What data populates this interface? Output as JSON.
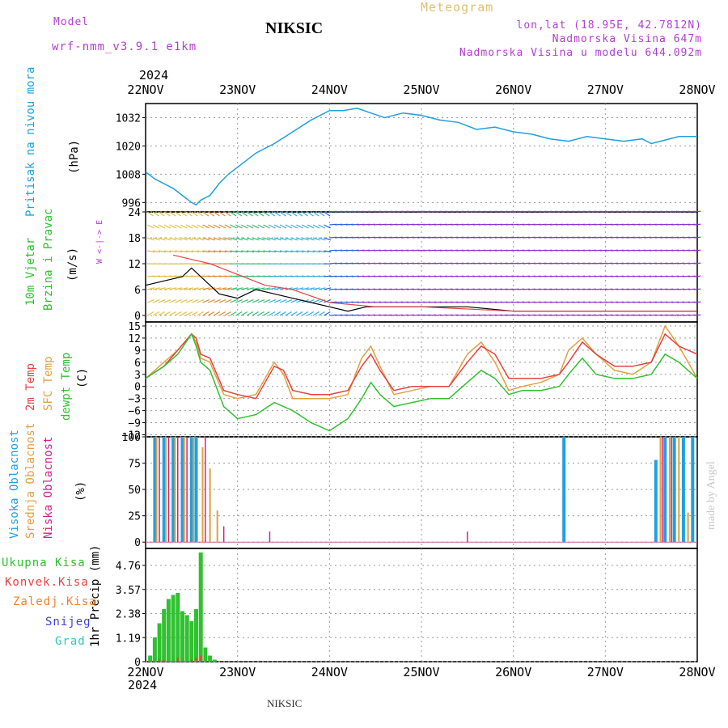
{
  "header": {
    "model_label": "Model",
    "model_name": "wrf-nmm_v3.9.1 e1km",
    "station": "NIKSIC",
    "meteogram": "Meteogram",
    "lonlat": "lon,lat (18.95E, 42.7812N)",
    "elevation": "Nadmorska Visina 647m",
    "model_elevation": "Nadmorska Visina u modelu 644.092m",
    "year_top": "2024",
    "year_bottom": "2024",
    "footer_station": "NIKSIC",
    "credit": "made by Angel"
  },
  "colors": {
    "pressure": "#1fa0e0",
    "temp2m": "#e84040",
    "sfc": "#e0a040",
    "dewpt": "#30c030",
    "cloud_high": "#1fa0e0",
    "cloud_mid": "#e0a040",
    "cloud_low": "#d0208a",
    "precip_total": "#30c030",
    "precip_conv": "#e84040",
    "precip_freez": "#f08030",
    "precip_snow": "#4040e0",
    "precip_grad": "#30c8b0",
    "wind_label": "#30c030",
    "grid": "#999999"
  },
  "panels": {
    "pressure": {
      "label": "Pritisak na nivou mora",
      "unit": "(hPa)",
      "ticks": [
        "1032",
        "1020",
        "1008",
        "996"
      ]
    },
    "wind": {
      "label1": "10m Vjetar",
      "label2": "Brzina i Pravac",
      "unit": "(m/s)",
      "ticks": [
        "24",
        "18",
        "12",
        "6",
        "0"
      ],
      "compass": "W <-|-> E"
    },
    "temp": {
      "label1": "2m Temp",
      "label2": "SFC Temp",
      "label3": "dewpt Temp",
      "unit": "(C)",
      "ticks": [
        "15",
        "12",
        "9",
        "6",
        "3",
        "0",
        "−3",
        "−6",
        "−9",
        "−12"
      ]
    },
    "cloud": {
      "label1": "Visoka Oblacnost",
      "label2": "Srednja Oblacnost",
      "label3": "Niska Oblacnost",
      "unit": "(%)",
      "ticks": [
        "100",
        "75",
        "50",
        "25",
        "0"
      ]
    },
    "precip": {
      "unit": "1hr Precip (mm)",
      "ticks": [
        "4.76",
        "3.57",
        "2.38",
        "1.19",
        "0"
      ],
      "legend": [
        "Ukupna Kisa",
        "Konvek.Kisa",
        "Zaledj.Kisa",
        "Snijeg",
        "Grad"
      ]
    }
  },
  "chart_data": {
    "type": "line",
    "x_labels": [
      "22NOV",
      "23NOV",
      "24NOV",
      "25NOV",
      "26NOV",
      "27NOV",
      "28NOV"
    ],
    "x_range_days": [
      0,
      6
    ],
    "pressure": {
      "ylim": [
        992,
        1038
      ],
      "x": [
        0,
        0.1,
        0.2,
        0.3,
        0.4,
        0.5,
        0.55,
        0.6,
        0.7,
        0.8,
        0.9,
        1.0,
        1.2,
        1.4,
        1.6,
        1.8,
        2.0,
        2.15,
        2.3,
        2.45,
        2.6,
        2.8,
        3.0,
        3.2,
        3.4,
        3.6,
        3.8,
        4.0,
        4.2,
        4.4,
        4.6,
        4.8,
        5.0,
        5.2,
        5.4,
        5.5,
        5.6,
        5.8,
        6.0
      ],
      "values": [
        1009,
        1006,
        1004,
        1002,
        999,
        996,
        995,
        997,
        999,
        1004,
        1008,
        1011,
        1017,
        1021,
        1026,
        1031,
        1035,
        1035,
        1036,
        1034,
        1032,
        1034,
        1033,
        1031,
        1030,
        1027,
        1028,
        1026,
        1025,
        1023,
        1022,
        1024,
        1023,
        1022,
        1023,
        1021,
        1022,
        1024,
        1024
      ]
    },
    "wind": {
      "ylim": [
        -1.5,
        24
      ],
      "speed_x": [
        0,
        0.2,
        0.4,
        0.5,
        0.6,
        0.7,
        0.8,
        1.0,
        1.2,
        1.4,
        1.6,
        1.8,
        2.0,
        2.2,
        2.4,
        2.6,
        2.8,
        3.0,
        3.5,
        4.0,
        4.5,
        5.0,
        5.5,
        6.0
      ],
      "speed": [
        7,
        8,
        9,
        11,
        9,
        7,
        5,
        4,
        6,
        5,
        4,
        3,
        2,
        1,
        2,
        2,
        2,
        2,
        2,
        1,
        1,
        1,
        1,
        1
      ],
      "gust_x": [
        0.3,
        0.5,
        0.7,
        1.3,
        1.6,
        2.0,
        2.5,
        3.0,
        4.0,
        5.0,
        5.6,
        6.0
      ],
      "gust": [
        14,
        13,
        12,
        7,
        6,
        3,
        2,
        2,
        1,
        1,
        1,
        1
      ]
    },
    "temperature": {
      "ylim": [
        -12.5,
        16
      ],
      "x": [
        0,
        0.2,
        0.35,
        0.5,
        0.55,
        0.6,
        0.7,
        0.85,
        1.0,
        1.2,
        1.4,
        1.5,
        1.6,
        1.8,
        2.0,
        2.2,
        2.35,
        2.45,
        2.55,
        2.7,
        2.9,
        3.1,
        3.3,
        3.5,
        3.65,
        3.8,
        3.95,
        4.1,
        4.3,
        4.5,
        4.6,
        4.75,
        4.9,
        5.1,
        5.3,
        5.5,
        5.65,
        5.8,
        6.0
      ],
      "t2m": [
        2,
        5,
        9,
        13,
        12,
        8,
        7,
        -1,
        -2,
        -3,
        5,
        4,
        -1,
        -2,
        -2,
        -1,
        5,
        8,
        4,
        -1,
        0,
        0,
        0,
        6,
        10,
        8,
        2,
        2,
        2,
        3,
        6,
        11,
        8,
        5,
        5,
        6,
        13,
        10,
        8
      ],
      "sfc": [
        2,
        6,
        9,
        13,
        11,
        7,
        6,
        -2,
        -3,
        -2,
        6,
        3,
        -3,
        -3,
        -3,
        -2,
        7,
        10,
        5,
        -2,
        -1,
        0,
        0,
        8,
        11,
        6,
        -1,
        0,
        1,
        3,
        9,
        12,
        8,
        4,
        3,
        6,
        15,
        10,
        2
      ],
      "dewpt": [
        2,
        5,
        8,
        13,
        10,
        6,
        4,
        -5,
        -8,
        -7,
        -4,
        -5,
        -6,
        -9,
        -11,
        -8,
        -3,
        1,
        -2,
        -5,
        -4,
        -3,
        -3,
        1,
        4,
        2,
        -2,
        -1,
        -1,
        0,
        3,
        7,
        3,
        2,
        2,
        3,
        8,
        6,
        2
      ]
    },
    "cloud": {
      "ylim": [
        0,
        100
      ],
      "high": [
        [
          0.1,
          100
        ],
        [
          0.2,
          100
        ],
        [
          0.3,
          100
        ],
        [
          0.4,
          100
        ],
        [
          0.5,
          100
        ],
        [
          0.55,
          100
        ],
        [
          4.55,
          100
        ],
        [
          5.55,
          78
        ],
        [
          5.65,
          100
        ],
        [
          5.75,
          100
        ],
        [
          5.85,
          100
        ],
        [
          5.95,
          100
        ]
      ],
      "mid": [
        [
          0.12,
          100
        ],
        [
          0.22,
          100
        ],
        [
          0.32,
          100
        ],
        [
          0.42,
          100
        ],
        [
          0.52,
          100
        ],
        [
          0.62,
          90
        ],
        [
          0.7,
          70
        ],
        [
          0.78,
          30
        ],
        [
          5.6,
          100
        ],
        [
          5.7,
          100
        ],
        [
          5.8,
          100
        ],
        [
          5.9,
          28
        ]
      ],
      "low": [
        [
          0.15,
          100
        ],
        [
          0.25,
          100
        ],
        [
          0.35,
          100
        ],
        [
          0.45,
          100
        ],
        [
          0.65,
          100
        ],
        [
          0.85,
          15
        ],
        [
          1.35,
          10
        ],
        [
          3.5,
          10
        ],
        [
          5.62,
          100
        ],
        [
          5.72,
          100
        ]
      ]
    },
    "precip": {
      "ylim": [
        0,
        5.6
      ],
      "x": [
        0.05,
        0.1,
        0.15,
        0.2,
        0.25,
        0.3,
        0.35,
        0.4,
        0.45,
        0.5,
        0.55,
        0.6,
        0.65,
        0.7,
        0.75
      ],
      "total": [
        0.3,
        1.2,
        1.9,
        2.6,
        3.1,
        3.3,
        3.4,
        2.5,
        2.3,
        2.0,
        2.6,
        5.4,
        0.7,
        0.3,
        0.1
      ],
      "convective": [
        0,
        0,
        0.1,
        0.1,
        0,
        0,
        0.2,
        0,
        0,
        0.1,
        0.2,
        0.3,
        0,
        0,
        0
      ]
    }
  }
}
